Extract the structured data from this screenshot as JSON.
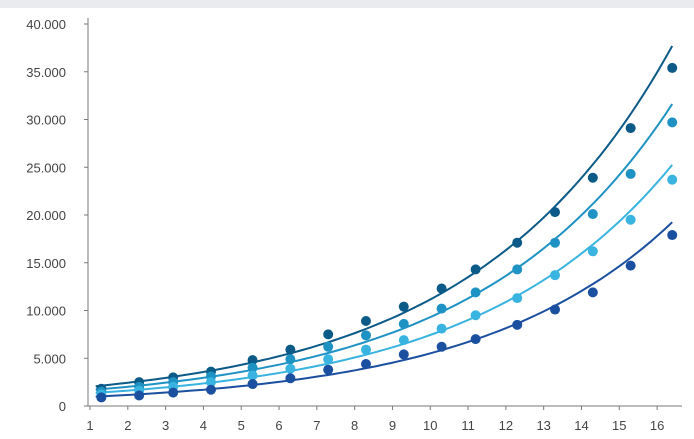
{
  "chart_data": {
    "type": "scatter",
    "title": "",
    "xlabel": "",
    "ylabel": "",
    "x": [
      1,
      2,
      3,
      4,
      5,
      6,
      7,
      8,
      9,
      10,
      11,
      12,
      13,
      14,
      15,
      16
    ],
    "xlim": [
      1,
      16.5
    ],
    "ylim": [
      0,
      40000
    ],
    "y_ticks": [
      "0",
      "5.000",
      "10.000",
      "15.000",
      "20.000",
      "25.000",
      "30.000",
      "35.000",
      "40.000"
    ],
    "x_ticks": [
      "1",
      "2",
      "3",
      "4",
      "5",
      "6",
      "7",
      "8",
      "9",
      "10",
      "11",
      "12",
      "13",
      "14",
      "15",
      "16"
    ],
    "grid": false,
    "legend": "none",
    "trendline": "exponential",
    "series": [
      {
        "color": "#0b5a88",
        "points": [
          [
            1.3,
            1800
          ],
          [
            2.3,
            2500
          ],
          [
            3.2,
            3000
          ],
          [
            4.2,
            3600
          ],
          [
            5.3,
            4800
          ],
          [
            6.3,
            5900
          ],
          [
            7.3,
            7500
          ],
          [
            8.3,
            8900
          ],
          [
            9.3,
            10400
          ],
          [
            10.3,
            12300
          ],
          [
            11.2,
            14300
          ],
          [
            12.3,
            17100
          ],
          [
            13.3,
            20300
          ],
          [
            14.3,
            23900
          ],
          [
            15.3,
            29100
          ],
          [
            16.4,
            35400
          ]
        ]
      },
      {
        "color": "#1f92c4",
        "points": [
          [
            1.3,
            1500
          ],
          [
            2.3,
            2000
          ],
          [
            3.2,
            2500
          ],
          [
            4.2,
            3100
          ],
          [
            5.3,
            4000
          ],
          [
            6.3,
            4900
          ],
          [
            7.3,
            6200
          ],
          [
            8.3,
            7400
          ],
          [
            9.3,
            8600
          ],
          [
            10.3,
            10200
          ],
          [
            11.2,
            11900
          ],
          [
            12.3,
            14300
          ],
          [
            13.3,
            17100
          ],
          [
            14.3,
            20100
          ],
          [
            15.3,
            24300
          ],
          [
            16.4,
            29700
          ]
        ]
      },
      {
        "color": "#39b3e0",
        "points": [
          [
            1.3,
            1200
          ],
          [
            2.3,
            1600
          ],
          [
            3.2,
            2000
          ],
          [
            4.2,
            2500
          ],
          [
            5.3,
            3200
          ],
          [
            6.3,
            3900
          ],
          [
            7.3,
            4900
          ],
          [
            8.3,
            5900
          ],
          [
            9.3,
            6900
          ],
          [
            10.3,
            8100
          ],
          [
            11.2,
            9500
          ],
          [
            12.3,
            11300
          ],
          [
            13.3,
            13700
          ],
          [
            14.3,
            16200
          ],
          [
            15.3,
            19500
          ],
          [
            16.4,
            23700
          ]
        ]
      },
      {
        "color": "#1b4fa0",
        "points": [
          [
            1.3,
            900
          ],
          [
            2.3,
            1100
          ],
          [
            3.2,
            1400
          ],
          [
            4.2,
            1700
          ],
          [
            5.3,
            2300
          ],
          [
            6.3,
            2900
          ],
          [
            7.3,
            3800
          ],
          [
            8.3,
            4400
          ],
          [
            9.3,
            5400
          ],
          [
            10.3,
            6200
          ],
          [
            11.2,
            7000
          ],
          [
            12.3,
            8500
          ],
          [
            13.3,
            10100
          ],
          [
            14.3,
            11900
          ],
          [
            15.3,
            14700
          ],
          [
            16.4,
            17900
          ]
        ]
      }
    ]
  }
}
